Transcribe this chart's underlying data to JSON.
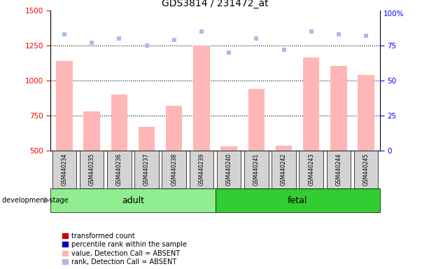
{
  "title": "GDS3814 / 231472_at",
  "samples": [
    "GSM440234",
    "GSM440235",
    "GSM440236",
    "GSM440237",
    "GSM440238",
    "GSM440239",
    "GSM440240",
    "GSM440241",
    "GSM440242",
    "GSM440243",
    "GSM440244",
    "GSM440245"
  ],
  "bar_values": [
    1140,
    780,
    900,
    670,
    820,
    1250,
    530,
    940,
    535,
    1165,
    1105,
    1040
  ],
  "rank_values": [
    83,
    77,
    80,
    75,
    79,
    85,
    70,
    80,
    72,
    85,
    83,
    82
  ],
  "groups": [
    {
      "label": "adult",
      "start": 0,
      "end": 6,
      "color": "#90ee90"
    },
    {
      "label": "fetal",
      "start": 6,
      "end": 12,
      "color": "#32cd32"
    }
  ],
  "ylim_left": [
    500,
    1500
  ],
  "ylim_right": [
    0,
    100
  ],
  "yticks_left": [
    500,
    750,
    1000,
    1250,
    1500
  ],
  "yticks_right": [
    0,
    25,
    50,
    75
  ],
  "bar_color_absent": "#ffb6b6",
  "rank_color_absent": "#b0b8e8",
  "background_color": "white",
  "stage_label": "development stage",
  "legend_items": [
    {
      "label": "transformed count",
      "color": "#cc0000"
    },
    {
      "label": "percentile rank within the sample",
      "color": "#0000cc"
    },
    {
      "label": "value, Detection Call = ABSENT",
      "color": "#ffb6b6"
    },
    {
      "label": "rank, Detection Call = ABSENT",
      "color": "#b0b8e8"
    }
  ],
  "adult_color": "#90ee90",
  "fetal_color": "#32cd32",
  "sample_box_color": "#d3d3d3"
}
